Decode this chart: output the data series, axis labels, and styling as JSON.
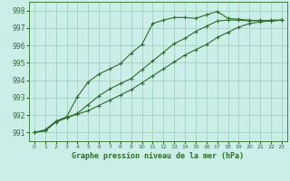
{
  "xlabel": "Graphe pression niveau de la mer (hPa)",
  "bg_color": "#cceee8",
  "grid_color": "#99ccbb",
  "line_color": "#2d6e2d",
  "xlim": [
    -0.5,
    23.5
  ],
  "ylim": [
    990.5,
    998.5
  ],
  "yticks": [
    991,
    992,
    993,
    994,
    995,
    996,
    997,
    998
  ],
  "xticks": [
    0,
    1,
    2,
    3,
    4,
    5,
    6,
    7,
    8,
    9,
    10,
    11,
    12,
    13,
    14,
    15,
    16,
    17,
    18,
    19,
    20,
    21,
    22,
    23
  ],
  "series1": [
    991.0,
    991.15,
    991.65,
    991.9,
    993.05,
    993.9,
    994.35,
    994.65,
    994.95,
    995.55,
    996.05,
    997.25,
    997.45,
    997.6,
    997.6,
    997.55,
    997.75,
    997.95,
    997.55,
    997.5,
    997.45,
    997.4,
    997.45,
    997.45
  ],
  "series2": [
    991.0,
    991.1,
    991.6,
    991.85,
    992.1,
    992.6,
    993.1,
    993.5,
    993.8,
    994.1,
    994.6,
    995.1,
    995.6,
    996.1,
    996.4,
    996.8,
    997.1,
    997.4,
    997.45,
    997.45,
    997.4,
    997.45,
    997.4,
    997.45
  ],
  "series3": [
    991.0,
    991.1,
    991.6,
    991.85,
    992.05,
    992.25,
    992.55,
    992.85,
    993.15,
    993.45,
    993.85,
    994.25,
    994.65,
    995.05,
    995.45,
    995.75,
    996.05,
    996.45,
    996.75,
    997.05,
    997.25,
    997.35,
    997.4,
    997.45
  ]
}
